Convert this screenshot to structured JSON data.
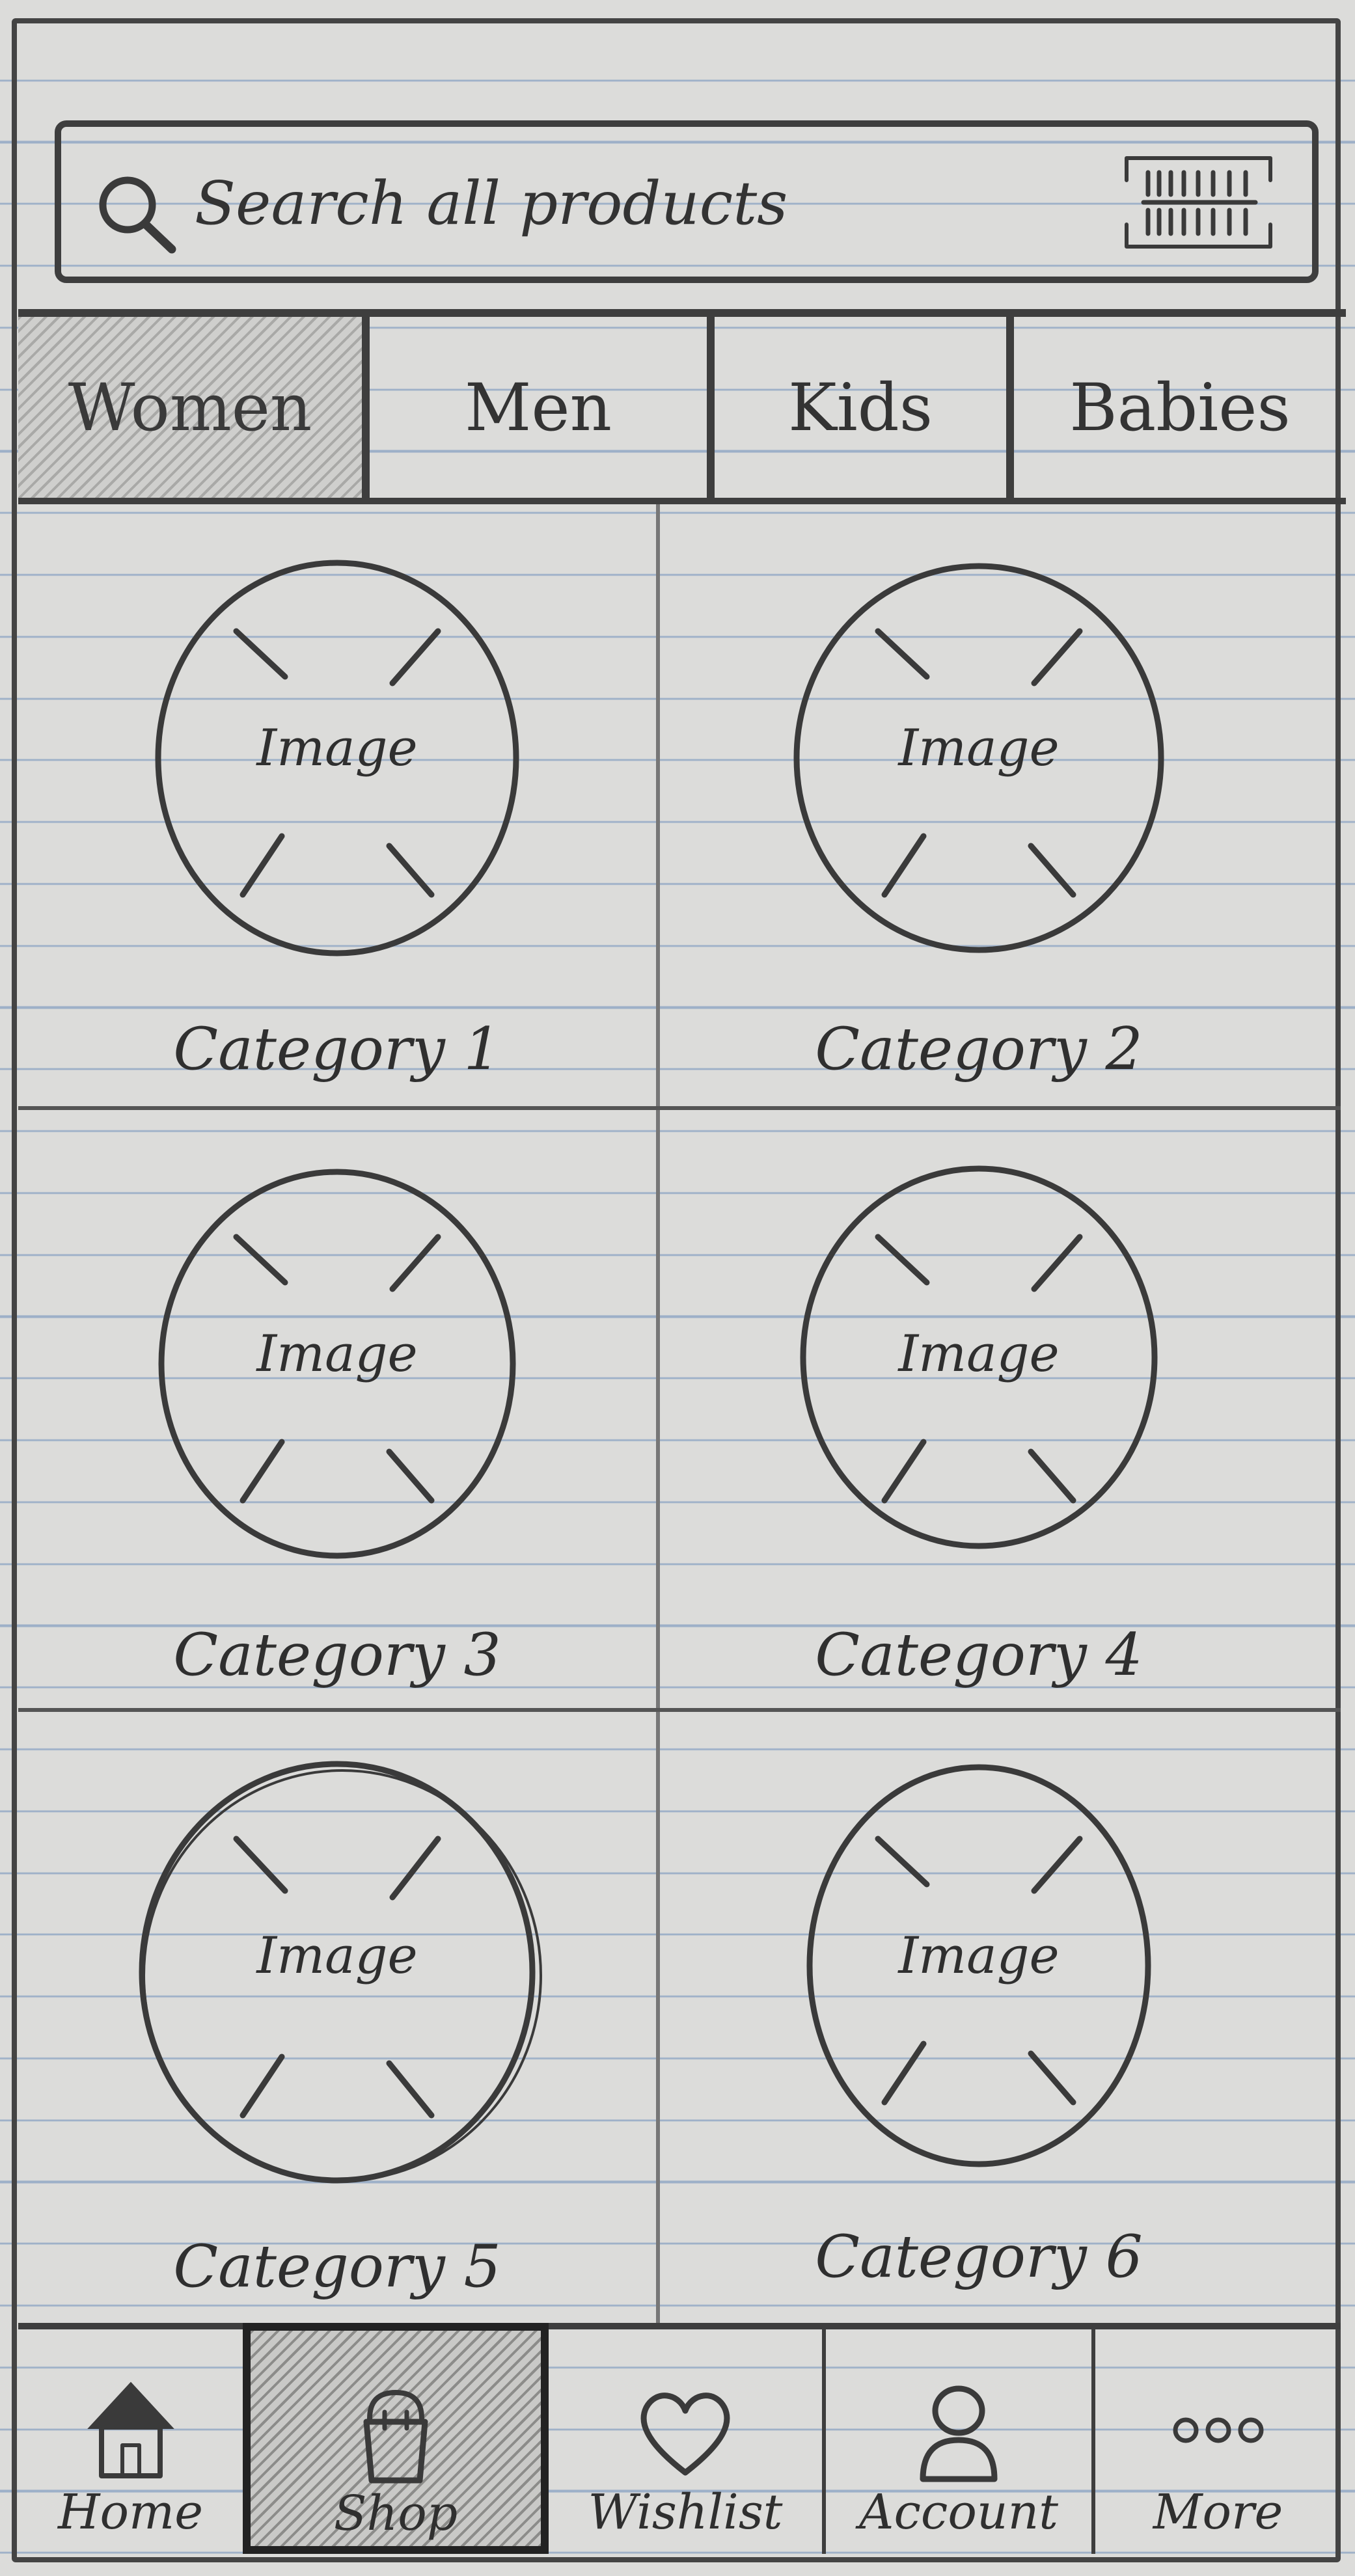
{
  "search": {
    "placeholder": "Search all products"
  },
  "tabs": [
    {
      "label": "Women",
      "selected": true
    },
    {
      "label": "Men",
      "selected": false
    },
    {
      "label": "Kids",
      "selected": false
    },
    {
      "label": "Babies",
      "selected": false
    }
  ],
  "categories": [
    {
      "image_label": "Image",
      "label": "Category 1"
    },
    {
      "image_label": "Image",
      "label": "Category 2"
    },
    {
      "image_label": "Image",
      "label": "Category 3"
    },
    {
      "image_label": "Image",
      "label": "Category 4"
    },
    {
      "image_label": "Image",
      "label": "Category 5"
    },
    {
      "image_label": "Image",
      "label": "Category 6"
    }
  ],
  "bottom_nav": [
    {
      "label": "Home",
      "icon": "home-icon",
      "active": false
    },
    {
      "label": "Shop",
      "icon": "shopping-bag-icon",
      "active": true
    },
    {
      "label": "Wishlist",
      "icon": "heart-icon",
      "active": false
    },
    {
      "label": "Account",
      "icon": "user-icon",
      "active": false
    },
    {
      "label": "More",
      "icon": "more-dots-icon",
      "active": false
    }
  ],
  "colors": {
    "paper": "#dcdcda",
    "ink": "#3a3a3a",
    "ruled_line": "#9db0c8"
  }
}
